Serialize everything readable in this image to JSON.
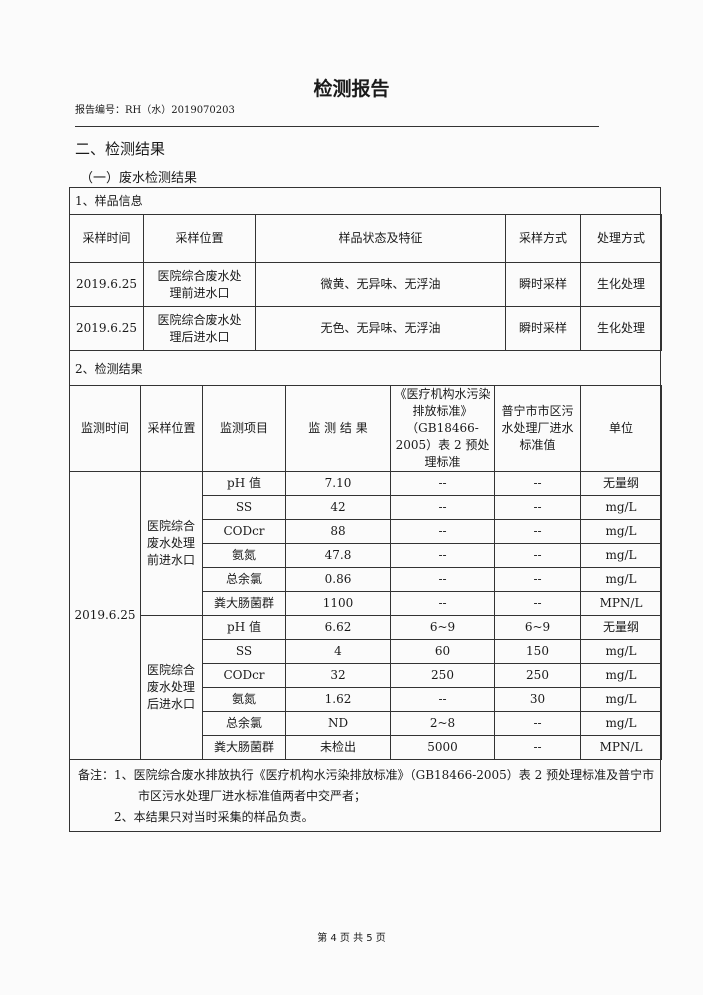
{
  "header": {
    "title": "检测报告",
    "report_no": "报告编号：RH（水）2019070203"
  },
  "section_title": "二、检测结果",
  "subsection_title": "（一）废水检测结果",
  "sample_info": {
    "label": "1、样品信息",
    "columns": [
      "采样时间",
      "采样位置",
      "样品状态及特征",
      "采样方式",
      "处理方式"
    ],
    "rows": [
      [
        "2019.6.25",
        "医院综合废水处理前进水口",
        "微黄、无异味、无浮油",
        "瞬时采样",
        "生化处理"
      ],
      [
        "2019.6.25",
        "医院综合废水处理后进水口",
        "无色、无异味、无浮油",
        "瞬时采样",
        "生化处理"
      ]
    ]
  },
  "results": {
    "label": "2、检测结果",
    "columns": [
      "监测时间",
      "采样位置",
      "监测项目",
      "监 测 结 果",
      "《医疗机构水污染排放标准》（GB18466-2005）表 2 预处理标准",
      "普宁市市区污水处理厂进水标准值",
      "单位"
    ],
    "date": "2019.6.25",
    "groups": [
      {
        "location": "医院综合废水处理前进水口",
        "rows": [
          [
            "pH 值",
            "7.10",
            "--",
            "--",
            "无量纲"
          ],
          [
            "SS",
            "42",
            "--",
            "--",
            "mg/L"
          ],
          [
            "CODcr",
            "88",
            "--",
            "--",
            "mg/L"
          ],
          [
            "氨氮",
            "47.8",
            "--",
            "--",
            "mg/L"
          ],
          [
            "总余氯",
            "0.86",
            "--",
            "--",
            "mg/L"
          ],
          [
            "粪大肠菌群",
            "1100",
            "--",
            "--",
            "MPN/L"
          ]
        ]
      },
      {
        "location": "医院综合废水处理后进水口",
        "rows": [
          [
            "pH 值",
            "6.62",
            "6~9",
            "6~9",
            "无量纲"
          ],
          [
            "SS",
            "4",
            "60",
            "150",
            "mg/L"
          ],
          [
            "CODcr",
            "32",
            "250",
            "250",
            "mg/L"
          ],
          [
            "氨氮",
            "1.62",
            "--",
            "30",
            "mg/L"
          ],
          [
            "总余氯",
            "ND",
            "2~8",
            "--",
            "mg/L"
          ],
          [
            "粪大肠菌群",
            "未检出",
            "5000",
            "--",
            "MPN/L"
          ]
        ]
      }
    ]
  },
  "notes": {
    "line1": "备注：1、医院综合废水排放执行《医疗机构水污染排放标准》（GB18466-2005）表 2 预处理标准及普宁市",
    "line1b": "市区污水处理厂进水标准值两者中交严者；",
    "line2": "2、本结果只对当时采集的样品负责。"
  },
  "footer": "第 4 页 共 5 页"
}
